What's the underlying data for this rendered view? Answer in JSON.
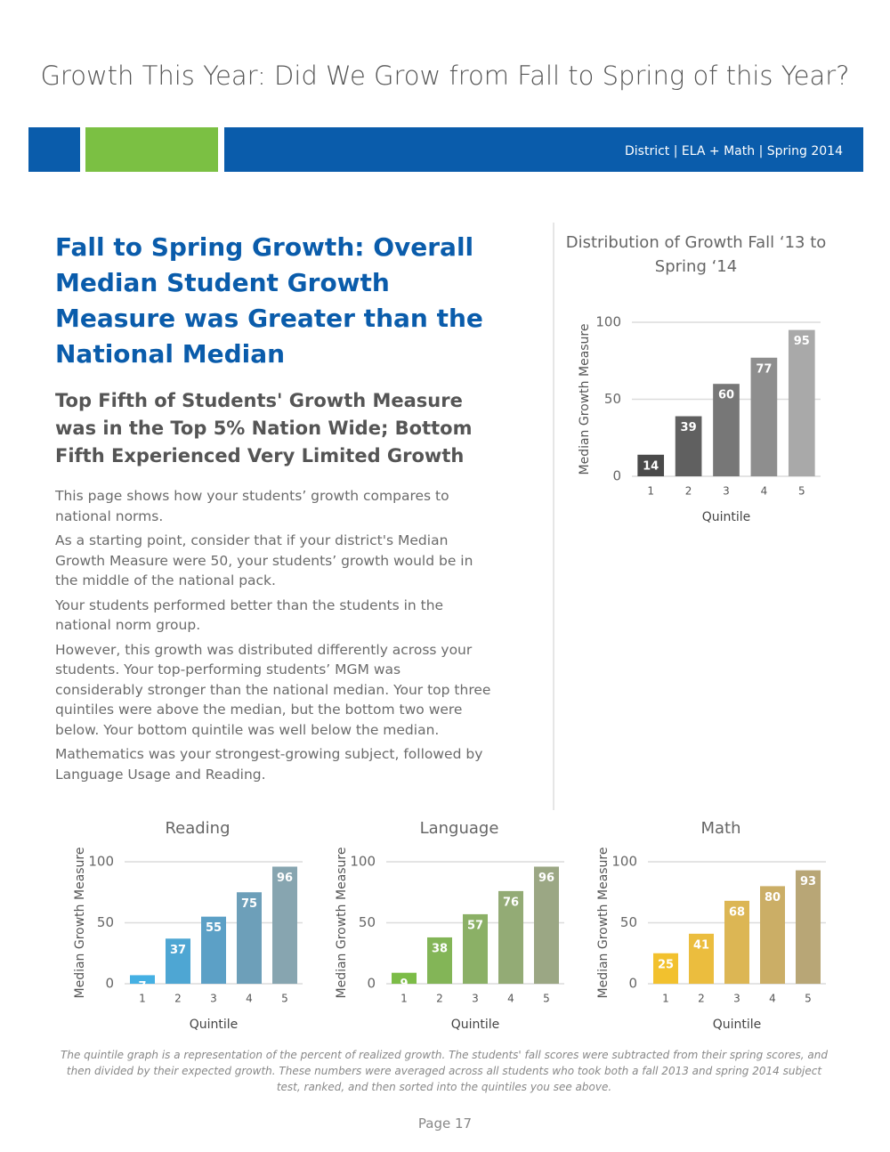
{
  "title": "Growth This Year: Did We Grow from Fall to Spring of this Year?",
  "banner": "District | ELA + Math | Spring 2014",
  "heading": "Fall to Spring Growth: Overall Median Student Growth Measure was Greater than the National Median",
  "subheading": "Top Fifth of Students' Growth Measure was in the Top 5% Nation Wide; Bottom Fifth Experienced Very Limited Growth",
  "paragraphs": [
    "This page shows how your students’ growth compares to national norms.",
    "As a starting point, consider that if your district's Median Growth Measure were 50, your students’ growth would be in the middle of the national pack.",
    "Your students performed better than the students in the national norm group.",
    "However, this growth was distributed differently across your students. Your top-performing students’ MGM was considerably stronger than the national median. Your top three quintiles were above the median, but the bottom two were below. Your bottom quintile was well below the median.",
    "Mathematics was your strongest-growing subject, followed by Language Usage and Reading."
  ],
  "footnote": "The quintile graph is a representation of the percent of realized growth. The students' fall scores were subtracted from their spring scores, and then divided by their expected growth. These numbers were averaged across all students who took both a fall 2013 and spring 2014 subject test, ranked, and then sorted into the quintiles you see above.",
  "page": "Page 17",
  "chart_data": [
    {
      "type": "bar",
      "title": "Distribution of Growth Fall ‘13 to Spring ‘14",
      "xlabel": "Quintile",
      "ylabel": "Median Growth Measure",
      "categories": [
        "1",
        "2",
        "3",
        "4",
        "5"
      ],
      "values": [
        14,
        39,
        60,
        77,
        95
      ],
      "colors": [
        "#4a4a4a",
        "#606060",
        "#777777",
        "#8e8e8e",
        "#a9a9a9"
      ],
      "ylim": [
        0,
        100
      ],
      "yticks": [
        0,
        50,
        100
      ],
      "grid": true
    },
    {
      "type": "bar",
      "title": "Reading",
      "xlabel": "Quintile",
      "ylabel": "Median Growth Measure",
      "categories": [
        "1",
        "2",
        "3",
        "4",
        "5"
      ],
      "values": [
        7,
        37,
        55,
        75,
        96
      ],
      "colors": [
        "#45b0e3",
        "#4ea6d3",
        "#5ca0c6",
        "#6d9fb9",
        "#87a5b0"
      ],
      "ylim": [
        0,
        100
      ],
      "yticks": [
        0,
        50,
        100
      ],
      "grid": true
    },
    {
      "type": "bar",
      "title": "Language",
      "xlabel": "Quintile",
      "ylabel": "Median Growth Measure",
      "categories": [
        "1",
        "2",
        "3",
        "4",
        "5"
      ],
      "values": [
        9,
        38,
        57,
        76,
        96
      ],
      "colors": [
        "#7cbc47",
        "#83b557",
        "#8bb066",
        "#93ab75",
        "#9ba784"
      ],
      "ylim": [
        0,
        100
      ],
      "yticks": [
        0,
        50,
        100
      ],
      "grid": true
    },
    {
      "type": "bar",
      "title": "Math",
      "xlabel": "Quintile",
      "ylabel": "Median Growth Measure",
      "categories": [
        "1",
        "2",
        "3",
        "4",
        "5"
      ],
      "values": [
        25,
        41,
        68,
        80,
        93
      ],
      "colors": [
        "#f2c12e",
        "#ebbd3e",
        "#dcb654",
        "#cbae66",
        "#b8a676"
      ],
      "ylim": [
        0,
        100
      ],
      "yticks": [
        0,
        50,
        100
      ],
      "grid": true
    }
  ]
}
